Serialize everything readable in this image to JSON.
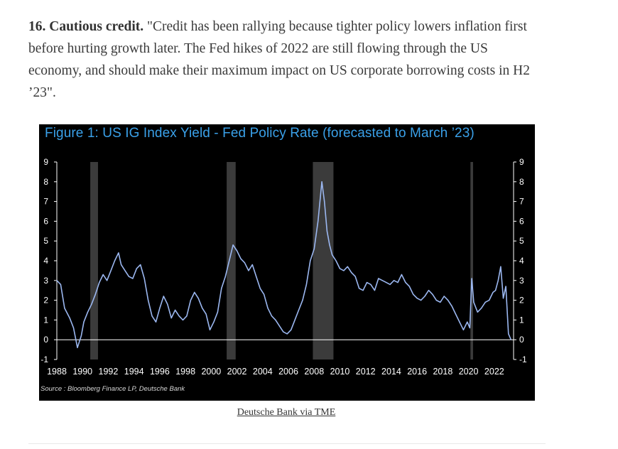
{
  "article": {
    "lead_bold": "16. Cautious credit.",
    "body": " \"Credit has been rallying because tighter policy lowers inflation first before hurting growth later. The Fed hikes of 2022 are still flowing through the US economy, and should make their maximum impact on US corporate borrowing costs in H2 ’23\"."
  },
  "figure": {
    "title": "Figure 1: US IG Index Yield - Fed Policy Rate (forecasted to March ’23)",
    "source": "Source : Bloomberg Finance LP, Deutsche Bank",
    "caption": "Deutsche Bank via TME"
  },
  "colors": {
    "background": "#000000",
    "line": "#9bb7f0",
    "title": "#3aa0e8",
    "recession": "#3b3b3b",
    "axis_text": "#ffffff"
  },
  "chart_data": {
    "type": "line",
    "title": "Figure 1: US IG Index Yield - Fed Policy Rate (forecasted to March ’23)",
    "xlabel": "",
    "ylabel": "",
    "xlim": [
      1988,
      2023.5
    ],
    "ylim": [
      -1,
      9
    ],
    "x_ticks": [
      "1988",
      "1990",
      "1992",
      "1994",
      "1996",
      "1998",
      "2000",
      "2002",
      "2004",
      "2006",
      "2008",
      "2010",
      "2012",
      "2014",
      "2016",
      "2018",
      "2020",
      "2022"
    ],
    "y_ticks": [
      "9",
      "8",
      "7",
      "6",
      "5",
      "4",
      "3",
      "2",
      "1",
      "0",
      "-1"
    ],
    "recession_bands": [
      [
        1990.6,
        1991.2
      ],
      [
        2001.2,
        2001.9
      ],
      [
        2007.9,
        2009.5
      ],
      [
        2020.15,
        2020.35
      ]
    ],
    "grid": false,
    "series": [
      {
        "x": [
          1988.0,
          1988.3,
          1988.6,
          1989.0,
          1989.3,
          1989.6,
          1989.9,
          1990.1,
          1990.4,
          1990.7,
          1991.0,
          1991.3,
          1991.6,
          1991.9,
          1992.2,
          1992.5,
          1992.8,
          1993.0,
          1993.3,
          1993.6,
          1993.9,
          1994.2,
          1994.5,
          1994.8,
          1995.1,
          1995.4,
          1995.7,
          1996.0,
          1996.3,
          1996.6,
          1996.9,
          1997.2,
          1997.5,
          1997.8,
          1998.1,
          1998.4,
          1998.7,
          1999.0,
          1999.3,
          1999.6,
          1999.9,
          2000.2,
          2000.5,
          2000.8,
          2001.1,
          2001.4,
          2001.7,
          2002.0,
          2002.3,
          2002.6,
          2002.9,
          2003.2,
          2003.5,
          2003.8,
          2004.1,
          2004.4,
          2004.7,
          2005.0,
          2005.3,
          2005.6,
          2005.9,
          2006.2,
          2006.5,
          2006.8,
          2007.1,
          2007.4,
          2007.7,
          2008.0,
          2008.3,
          2008.6,
          2008.8,
          2009.0,
          2009.2,
          2009.4,
          2009.7,
          2010.0,
          2010.3,
          2010.6,
          2010.9,
          2011.2,
          2011.5,
          2011.8,
          2012.1,
          2012.4,
          2012.7,
          2013.0,
          2013.3,
          2013.6,
          2013.9,
          2014.2,
          2014.5,
          2014.8,
          2015.1,
          2015.4,
          2015.7,
          2016.0,
          2016.3,
          2016.6,
          2016.9,
          2017.2,
          2017.5,
          2017.8,
          2018.1,
          2018.4,
          2018.7,
          2019.0,
          2019.3,
          2019.6,
          2019.9,
          2020.1,
          2020.25,
          2020.4,
          2020.7,
          2021.0,
          2021.3,
          2021.6,
          2021.9,
          2022.1,
          2022.3,
          2022.5,
          2022.7,
          2022.9,
          2023.1,
          2023.3
        ],
        "y": [
          3.0,
          2.8,
          1.6,
          1.1,
          0.6,
          -0.4,
          0.2,
          0.9,
          1.4,
          1.8,
          2.3,
          2.9,
          3.3,
          3.0,
          3.5,
          4.0,
          4.4,
          3.8,
          3.5,
          3.2,
          3.1,
          3.6,
          3.8,
          3.1,
          2.0,
          1.2,
          0.9,
          1.6,
          2.2,
          1.8,
          1.1,
          1.5,
          1.2,
          1.0,
          1.2,
          2.0,
          2.4,
          2.1,
          1.6,
          1.3,
          0.5,
          0.9,
          1.4,
          2.6,
          3.2,
          4.0,
          4.8,
          4.5,
          4.1,
          3.9,
          3.5,
          3.8,
          3.2,
          2.6,
          2.3,
          1.6,
          1.2,
          1.0,
          0.7,
          0.4,
          0.3,
          0.5,
          1.0,
          1.5,
          2.0,
          2.8,
          4.0,
          4.6,
          6.0,
          8.0,
          7.0,
          5.5,
          4.8,
          4.3,
          4.0,
          3.6,
          3.5,
          3.7,
          3.4,
          3.2,
          2.6,
          2.5,
          2.9,
          2.8,
          2.5,
          3.1,
          3.0,
          2.9,
          2.8,
          3.0,
          2.9,
          3.3,
          2.9,
          2.7,
          2.3,
          2.1,
          2.0,
          2.2,
          2.5,
          2.3,
          2.0,
          1.9,
          2.2,
          2.0,
          1.7,
          1.3,
          0.9,
          0.5,
          0.9,
          0.6,
          3.1,
          1.9,
          1.4,
          1.6,
          1.9,
          2.0,
          2.4,
          2.5,
          3.0,
          3.7,
          2.1,
          2.7,
          0.3,
          0.0
        ]
      }
    ]
  }
}
